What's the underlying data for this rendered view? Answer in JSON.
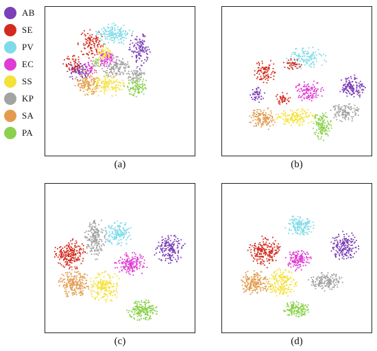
{
  "legend": [
    {
      "name": "AB",
      "color": "#7b3fb6"
    },
    {
      "name": "SE",
      "color": "#d42a1d"
    },
    {
      "name": "PV",
      "color": "#7fdbe8"
    },
    {
      "name": "EC",
      "color": "#e03bd3"
    },
    {
      "name": "SS",
      "color": "#f4e23a"
    },
    {
      "name": "KP",
      "color": "#a3a3a3"
    },
    {
      "name": "SA",
      "color": "#e39c4f"
    },
    {
      "name": "PA",
      "color": "#8bd14d"
    }
  ],
  "chart_data": [
    {
      "type": "scatter",
      "panel_label": "(a)",
      "clusters": [
        {
          "class": "PV",
          "cx": 0.45,
          "cy": 0.18,
          "rx": 0.12,
          "ry": 0.07,
          "n": 160
        },
        {
          "class": "SE",
          "cx": 0.3,
          "cy": 0.24,
          "rx": 0.08,
          "ry": 0.09,
          "n": 110
        },
        {
          "class": "SE",
          "cx": 0.18,
          "cy": 0.38,
          "rx": 0.06,
          "ry": 0.06,
          "n": 70
        },
        {
          "class": "AB",
          "cx": 0.62,
          "cy": 0.28,
          "rx": 0.07,
          "ry": 0.12,
          "n": 120
        },
        {
          "class": "AB",
          "cx": 0.22,
          "cy": 0.43,
          "rx": 0.07,
          "ry": 0.06,
          "n": 70
        },
        {
          "class": "EC",
          "cx": 0.4,
          "cy": 0.34,
          "rx": 0.07,
          "ry": 0.06,
          "n": 90
        },
        {
          "class": "EC",
          "cx": 0.3,
          "cy": 0.4,
          "rx": 0.04,
          "ry": 0.05,
          "n": 40
        },
        {
          "class": "SS",
          "cx": 0.38,
          "cy": 0.3,
          "rx": 0.05,
          "ry": 0.05,
          "n": 60
        },
        {
          "class": "SS",
          "cx": 0.4,
          "cy": 0.52,
          "rx": 0.14,
          "ry": 0.07,
          "n": 140
        },
        {
          "class": "KP",
          "cx": 0.47,
          "cy": 0.4,
          "rx": 0.09,
          "ry": 0.07,
          "n": 130
        },
        {
          "class": "KP",
          "cx": 0.6,
          "cy": 0.45,
          "rx": 0.06,
          "ry": 0.05,
          "n": 70
        },
        {
          "class": "SA",
          "cx": 0.28,
          "cy": 0.5,
          "rx": 0.09,
          "ry": 0.08,
          "n": 120
        },
        {
          "class": "PA",
          "cx": 0.6,
          "cy": 0.53,
          "rx": 0.08,
          "ry": 0.06,
          "n": 90
        },
        {
          "class": "PA",
          "cx": 0.34,
          "cy": 0.37,
          "rx": 0.03,
          "ry": 0.03,
          "n": 20
        }
      ]
    },
    {
      "type": "scatter",
      "panel_label": "(b)",
      "clusters": [
        {
          "class": "PV",
          "cx": 0.56,
          "cy": 0.34,
          "rx": 0.13,
          "ry": 0.07,
          "n": 130
        },
        {
          "class": "SE",
          "cx": 0.28,
          "cy": 0.43,
          "rx": 0.07,
          "ry": 0.08,
          "n": 90
        },
        {
          "class": "SE",
          "cx": 0.46,
          "cy": 0.38,
          "rx": 0.06,
          "ry": 0.04,
          "n": 40
        },
        {
          "class": "SE",
          "cx": 0.4,
          "cy": 0.61,
          "rx": 0.05,
          "ry": 0.04,
          "n": 40
        },
        {
          "class": "AB",
          "cx": 0.86,
          "cy": 0.53,
          "rx": 0.08,
          "ry": 0.08,
          "n": 140
        },
        {
          "class": "AB",
          "cx": 0.23,
          "cy": 0.58,
          "rx": 0.05,
          "ry": 0.05,
          "n": 50
        },
        {
          "class": "EC",
          "cx": 0.57,
          "cy": 0.56,
          "rx": 0.09,
          "ry": 0.07,
          "n": 120
        },
        {
          "class": "SS",
          "cx": 0.48,
          "cy": 0.73,
          "rx": 0.14,
          "ry": 0.06,
          "n": 140
        },
        {
          "class": "KP",
          "cx": 0.81,
          "cy": 0.7,
          "rx": 0.09,
          "ry": 0.06,
          "n": 120
        },
        {
          "class": "SA",
          "cx": 0.27,
          "cy": 0.74,
          "rx": 0.09,
          "ry": 0.07,
          "n": 130
        },
        {
          "class": "PA",
          "cx": 0.66,
          "cy": 0.79,
          "rx": 0.06,
          "ry": 0.09,
          "n": 120
        }
      ]
    },
    {
      "type": "scatter",
      "panel_label": "(c)",
      "clusters": [
        {
          "class": "PV",
          "cx": 0.48,
          "cy": 0.33,
          "rx": 0.09,
          "ry": 0.08,
          "n": 150
        },
        {
          "class": "SE",
          "cx": 0.16,
          "cy": 0.47,
          "rx": 0.1,
          "ry": 0.1,
          "n": 220
        },
        {
          "class": "AB",
          "cx": 0.82,
          "cy": 0.43,
          "rx": 0.1,
          "ry": 0.09,
          "n": 170
        },
        {
          "class": "EC",
          "cx": 0.57,
          "cy": 0.53,
          "rx": 0.11,
          "ry": 0.07,
          "n": 160
        },
        {
          "class": "SS",
          "cx": 0.39,
          "cy": 0.68,
          "rx": 0.1,
          "ry": 0.1,
          "n": 190
        },
        {
          "class": "KP",
          "cx": 0.33,
          "cy": 0.36,
          "rx": 0.07,
          "ry": 0.13,
          "n": 190
        },
        {
          "class": "SA",
          "cx": 0.19,
          "cy": 0.66,
          "rx": 0.1,
          "ry": 0.09,
          "n": 200
        },
        {
          "class": "PA",
          "cx": 0.64,
          "cy": 0.84,
          "rx": 0.1,
          "ry": 0.07,
          "n": 190
        }
      ]
    },
    {
      "type": "scatter",
      "panel_label": "(d)",
      "clusters": [
        {
          "class": "PV",
          "cx": 0.51,
          "cy": 0.28,
          "rx": 0.09,
          "ry": 0.07,
          "n": 150
        },
        {
          "class": "SE",
          "cx": 0.28,
          "cy": 0.45,
          "rx": 0.11,
          "ry": 0.1,
          "n": 200
        },
        {
          "class": "AB",
          "cx": 0.81,
          "cy": 0.41,
          "rx": 0.09,
          "ry": 0.09,
          "n": 170
        },
        {
          "class": "EC",
          "cx": 0.5,
          "cy": 0.5,
          "rx": 0.08,
          "ry": 0.07,
          "n": 140
        },
        {
          "class": "SS",
          "cx": 0.39,
          "cy": 0.66,
          "rx": 0.1,
          "ry": 0.09,
          "n": 180
        },
        {
          "class": "KP",
          "cx": 0.68,
          "cy": 0.65,
          "rx": 0.11,
          "ry": 0.06,
          "n": 160
        },
        {
          "class": "SA",
          "cx": 0.21,
          "cy": 0.66,
          "rx": 0.1,
          "ry": 0.08,
          "n": 180
        },
        {
          "class": "PA",
          "cx": 0.49,
          "cy": 0.83,
          "rx": 0.08,
          "ry": 0.05,
          "n": 140
        }
      ]
    }
  ]
}
